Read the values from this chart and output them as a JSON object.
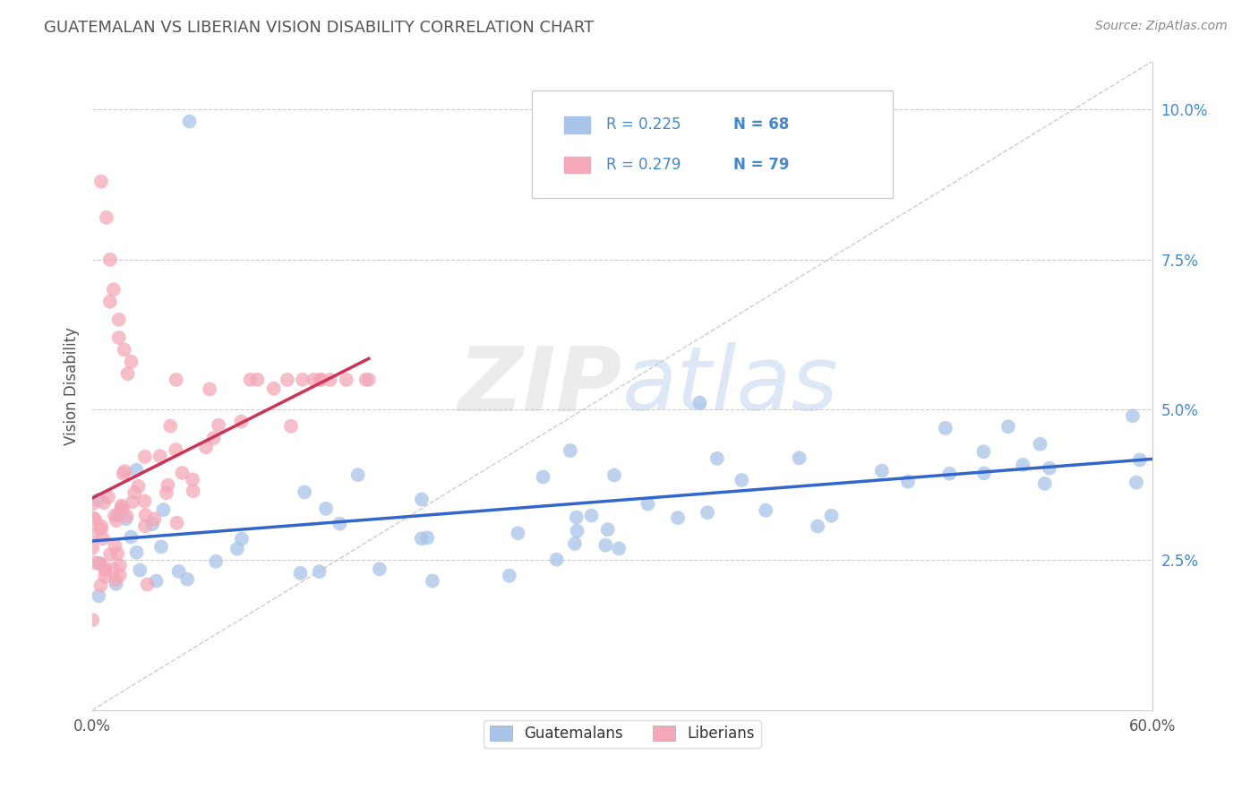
{
  "title": "GUATEMALAN VS LIBERIAN VISION DISABILITY CORRELATION CHART",
  "source_text": "Source: ZipAtlas.com",
  "ylabel": "Vision Disability",
  "y_ticks": [
    0.025,
    0.05,
    0.075,
    0.1
  ],
  "y_tick_labels": [
    "2.5%",
    "5.0%",
    "7.5%",
    "10.0%"
  ],
  "x_range": [
    0.0,
    0.6
  ],
  "y_range": [
    0.0,
    0.108
  ],
  "guatemalan_color": "#a8c4e8",
  "liberian_color": "#f4a8b8",
  "guatemalan_trend_color": "#3366cc",
  "liberian_trend_color": "#cc3355",
  "R_guatemalan": 0.225,
  "N_guatemalan": 68,
  "R_liberian": 0.279,
  "N_liberian": 79,
  "title_color": "#555555",
  "source_color": "#888888",
  "ytick_color": "#4488cc",
  "xtick_color": "#555555"
}
